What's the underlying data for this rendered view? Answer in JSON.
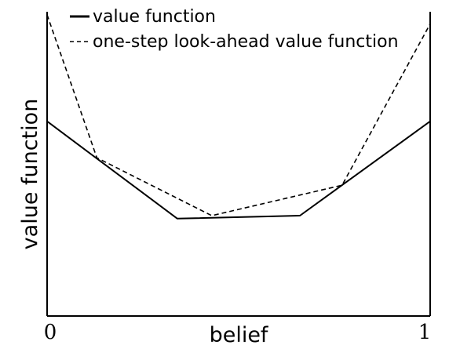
{
  "chart_data": {
    "type": "line",
    "xlabel": "belief",
    "ylabel": "value function",
    "xlim": [
      0,
      1
    ],
    "ylim": [
      0,
      1
    ],
    "x_ticks": [
      "0",
      "1"
    ],
    "grid": false,
    "legend_position": "top-left",
    "series": [
      {
        "name": "value function",
        "line_style": "solid",
        "color": "#000000",
        "x": [
          0,
          0.34,
          0.66,
          1
        ],
        "y": [
          0.64,
          0.32,
          0.33,
          0.64
        ]
      },
      {
        "name": "one-step look-ahead value function",
        "line_style": "dashed",
        "color": "#000000",
        "x": [
          0,
          0.13,
          0.43,
          0.77,
          1
        ],
        "y": [
          0.99,
          0.52,
          0.33,
          0.43,
          0.96
        ]
      }
    ]
  }
}
